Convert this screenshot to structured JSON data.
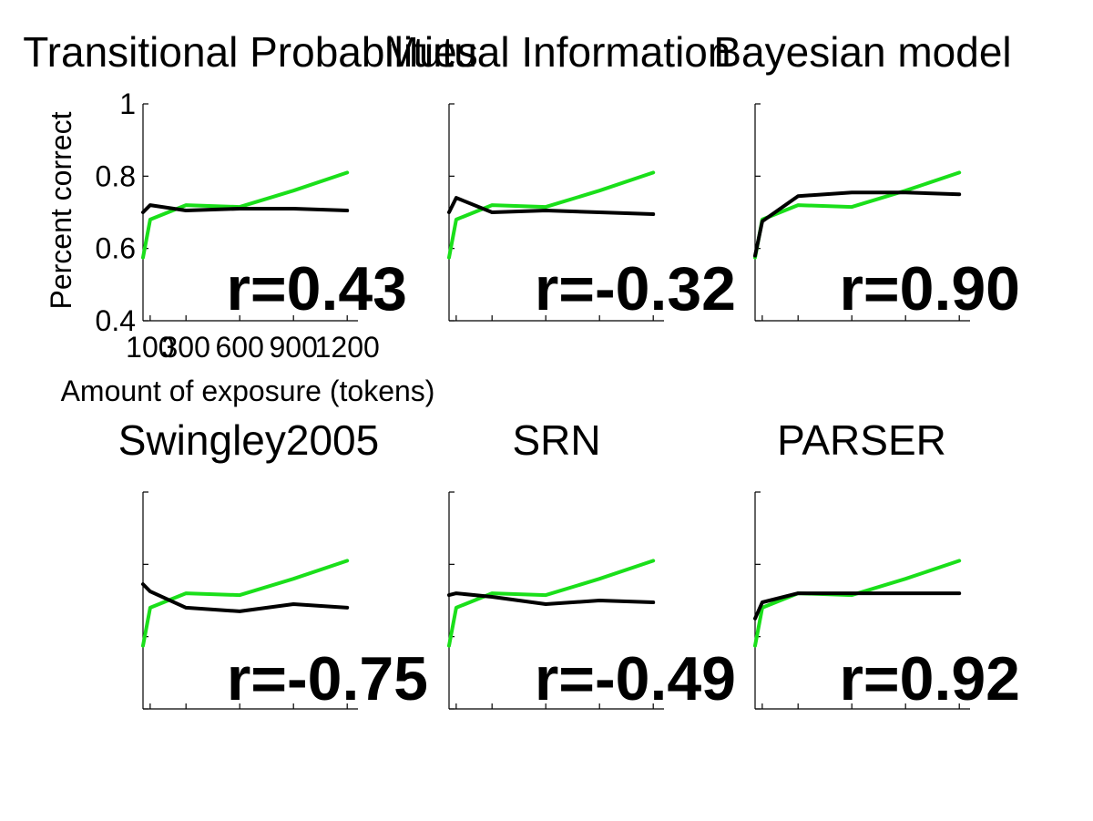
{
  "chart_data": [
    {
      "type": "line",
      "title": "Transitional Probabilities",
      "xlabel": "Amount of exposure (tokens)",
      "ylabel": "Percent correct",
      "xlim": [
        60,
        1260
      ],
      "ylim": [
        0.4,
        1.0
      ],
      "xticks": [
        100,
        300,
        600,
        900,
        1200
      ],
      "yticks": [
        0.4,
        0.6,
        0.8,
        1
      ],
      "ytick_labels": [
        "0.4",
        "0.6",
        "0.8",
        "1"
      ],
      "show_tick_labels": true,
      "annotation": "r=0.43",
      "grid": false,
      "series": [
        {
          "color": "#1adf1a",
          "x": [
            60,
            100,
            300,
            600,
            900,
            1200
          ],
          "y": [
            0.575,
            0.68,
            0.72,
            0.715,
            0.76,
            0.81
          ]
        },
        {
          "color": "#000000",
          "x": [
            60,
            100,
            300,
            600,
            900,
            1200
          ],
          "y": [
            0.7,
            0.72,
            0.705,
            0.71,
            0.71,
            0.705
          ]
        }
      ]
    },
    {
      "type": "line",
      "title": "Mutual Information",
      "xlim": [
        60,
        1260
      ],
      "ylim": [
        0.4,
        1.0
      ],
      "xticks": [
        100,
        300,
        600,
        900,
        1200
      ],
      "yticks": [
        0.4,
        0.6,
        0.8,
        1
      ],
      "show_tick_labels": false,
      "annotation": "r=-0.32",
      "grid": false,
      "series": [
        {
          "color": "#1adf1a",
          "x": [
            60,
            100,
            300,
            600,
            900,
            1200
          ],
          "y": [
            0.575,
            0.68,
            0.72,
            0.715,
            0.76,
            0.81
          ]
        },
        {
          "color": "#000000",
          "x": [
            60,
            100,
            300,
            600,
            900,
            1200
          ],
          "y": [
            0.7,
            0.74,
            0.7,
            0.705,
            0.7,
            0.695
          ]
        }
      ]
    },
    {
      "type": "line",
      "title": "Bayesian model",
      "xlim": [
        60,
        1260
      ],
      "ylim": [
        0.4,
        1.0
      ],
      "xticks": [
        100,
        300,
        600,
        900,
        1200
      ],
      "yticks": [
        0.4,
        0.6,
        0.8,
        1
      ],
      "show_tick_labels": false,
      "annotation": "r=0.90",
      "grid": false,
      "series": [
        {
          "color": "#1adf1a",
          "x": [
            60,
            100,
            300,
            600,
            900,
            1200
          ],
          "y": [
            0.575,
            0.68,
            0.72,
            0.715,
            0.76,
            0.81
          ]
        },
        {
          "color": "#000000",
          "x": [
            60,
            100,
            300,
            600,
            900,
            1200
          ],
          "y": [
            0.58,
            0.675,
            0.745,
            0.755,
            0.755,
            0.75
          ]
        }
      ]
    },
    {
      "type": "line",
      "title": "Swingley2005",
      "xlim": [
        60,
        1260
      ],
      "ylim": [
        0.4,
        1.0
      ],
      "xticks": [
        100,
        300,
        600,
        900,
        1200
      ],
      "yticks": [
        0.4,
        0.6,
        0.8,
        1
      ],
      "show_tick_labels": false,
      "annotation": "r=-0.75",
      "grid": false,
      "series": [
        {
          "color": "#1adf1a",
          "x": [
            60,
            100,
            300,
            600,
            900,
            1200
          ],
          "y": [
            0.575,
            0.68,
            0.72,
            0.715,
            0.76,
            0.81
          ]
        },
        {
          "color": "#000000",
          "x": [
            60,
            100,
            300,
            600,
            900,
            1200
          ],
          "y": [
            0.745,
            0.725,
            0.68,
            0.67,
            0.69,
            0.68
          ]
        }
      ]
    },
    {
      "type": "line",
      "title": "SRN",
      "xlim": [
        60,
        1260
      ],
      "ylim": [
        0.4,
        1.0
      ],
      "xticks": [
        100,
        300,
        600,
        900,
        1200
      ],
      "yticks": [
        0.4,
        0.6,
        0.8,
        1
      ],
      "show_tick_labels": false,
      "annotation": "r=-0.49",
      "grid": false,
      "series": [
        {
          "color": "#1adf1a",
          "x": [
            60,
            100,
            300,
            600,
            900,
            1200
          ],
          "y": [
            0.575,
            0.68,
            0.72,
            0.715,
            0.76,
            0.81
          ]
        },
        {
          "color": "#000000",
          "x": [
            60,
            100,
            300,
            600,
            900,
            1200
          ],
          "y": [
            0.715,
            0.72,
            0.71,
            0.69,
            0.7,
            0.695
          ]
        }
      ]
    },
    {
      "type": "line",
      "title": "PARSER",
      "xlim": [
        60,
        1260
      ],
      "ylim": [
        0.4,
        1.0
      ],
      "xticks": [
        100,
        300,
        600,
        900,
        1200
      ],
      "yticks": [
        0.4,
        0.6,
        0.8,
        1
      ],
      "show_tick_labels": false,
      "annotation": "r=0.92",
      "grid": false,
      "series": [
        {
          "color": "#1adf1a",
          "x": [
            60,
            100,
            300,
            600,
            900,
            1200
          ],
          "y": [
            0.575,
            0.68,
            0.72,
            0.715,
            0.76,
            0.81
          ]
        },
        {
          "color": "#000000",
          "x": [
            60,
            100,
            300,
            600,
            900,
            1200
          ],
          "y": [
            0.65,
            0.695,
            0.72,
            0.72,
            0.72,
            0.72
          ]
        }
      ]
    }
  ]
}
